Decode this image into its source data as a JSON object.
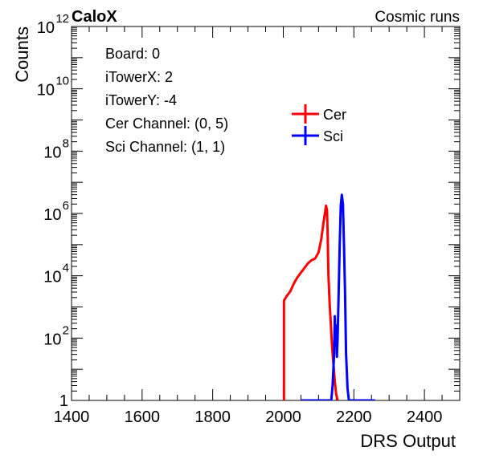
{
  "chart_data": {
    "type": "line",
    "title_left": "CaloX",
    "title_right": "Cosmic runs",
    "xlabel": "DRS Output",
    "ylabel": "Counts",
    "xlim": [
      1400,
      2500
    ],
    "ylim_log10": [
      0,
      12
    ],
    "y_scale": "log",
    "x_ticks": [
      1400,
      1600,
      1800,
      2000,
      2200,
      2400
    ],
    "y_ticks": [
      {
        "exp": 0,
        "base": "1",
        "sup": ""
      },
      {
        "exp": 2,
        "base": "10",
        "sup": "2"
      },
      {
        "exp": 4,
        "base": "10",
        "sup": "4"
      },
      {
        "exp": 6,
        "base": "10",
        "sup": "6"
      },
      {
        "exp": 8,
        "base": "10",
        "sup": "8"
      },
      {
        "exp": 10,
        "base": "10",
        "sup": "10"
      },
      {
        "exp": 12,
        "base": "10",
        "sup": "12"
      }
    ],
    "info_lines": [
      "Board: 0",
      "iTowerX: 2",
      "iTowerY: -4",
      "Cer Channel: (0, 5)",
      "Sci Channel: (1, 1)"
    ],
    "series": [
      {
        "name": "Cer",
        "color": "#ff0000",
        "points": [
          [
            2002,
            0
          ],
          [
            2002,
            3.2
          ],
          [
            2010,
            3.35
          ],
          [
            2020,
            3.5
          ],
          [
            2030,
            3.75
          ],
          [
            2040,
            3.95
          ],
          [
            2050,
            4.1
          ],
          [
            2060,
            4.25
          ],
          [
            2070,
            4.4
          ],
          [
            2080,
            4.5
          ],
          [
            2090,
            4.55
          ],
          [
            2100,
            4.75
          ],
          [
            2108,
            5.2
          ],
          [
            2114,
            5.7
          ],
          [
            2118,
            6.0
          ],
          [
            2121,
            6.25
          ],
          [
            2124,
            6.1
          ],
          [
            2126,
            5.2
          ],
          [
            2128,
            4.0
          ],
          [
            2131,
            3.2
          ],
          [
            2134,
            2.6
          ],
          [
            2138,
            1.8
          ],
          [
            2142,
            1.2
          ],
          [
            2146,
            0.6
          ],
          [
            2150,
            0.2
          ],
          [
            2154,
            0
          ]
        ]
      },
      {
        "name": "Sci",
        "color": "#0000ff",
        "points": [
          [
            2050,
            0
          ],
          [
            2136,
            0
          ],
          [
            2140,
            0.5
          ],
          [
            2144,
            1.5
          ],
          [
            2146,
            2.7
          ],
          [
            2148,
            1.8
          ],
          [
            2150,
            2.4
          ],
          [
            2152,
            1.4
          ],
          [
            2154,
            2.0
          ],
          [
            2157,
            3.5
          ],
          [
            2160,
            5.0
          ],
          [
            2163,
            6.25
          ],
          [
            2166,
            6.6
          ],
          [
            2169,
            6.3
          ],
          [
            2172,
            5.0
          ],
          [
            2175,
            3.5
          ],
          [
            2178,
            1.5
          ],
          [
            2182,
            0.4
          ],
          [
            2186,
            0
          ],
          [
            2260,
            0
          ]
        ]
      }
    ]
  }
}
